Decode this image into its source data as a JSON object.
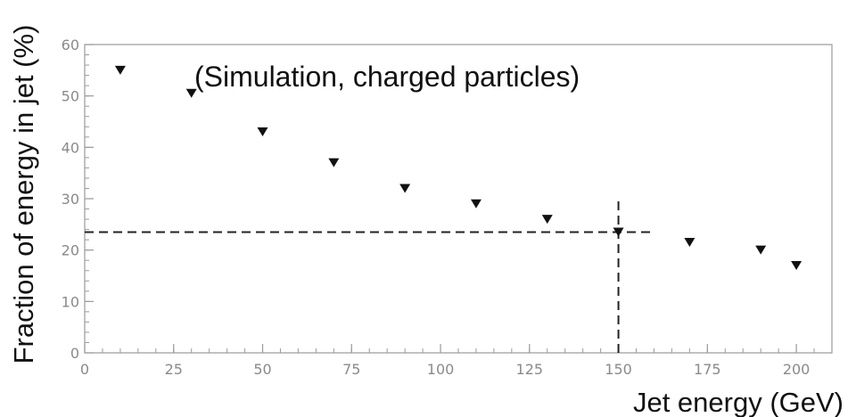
{
  "chart_data": {
    "type": "scatter",
    "title": "",
    "annotation": "(Simulation, charged particles)",
    "xlabel": "Jet energy (GeV)",
    "ylabel": "Fraction of energy in jet (%)",
    "xlim": [
      0,
      210
    ],
    "ylim": [
      0,
      60
    ],
    "xticks": [
      0,
      25,
      50,
      75,
      100,
      125,
      150,
      175,
      200
    ],
    "yticks": [
      0,
      10,
      20,
      30,
      40,
      50,
      60
    ],
    "xtick_labels": [
      "0",
      "25",
      "50",
      "75",
      "100",
      "125",
      "150",
      "175",
      "200"
    ],
    "ytick_labels": [
      "0",
      "10",
      "20",
      "30",
      "40",
      "50",
      "60"
    ],
    "grid": false,
    "marker": "down-triangle",
    "series": [
      {
        "x": [
          10,
          30,
          50,
          70,
          90,
          110,
          130,
          150,
          170,
          190,
          200
        ],
        "y": [
          55,
          50.5,
          43,
          37,
          32,
          29,
          26,
          23.5,
          21.5,
          20,
          17
        ],
        "color": "#111111"
      }
    ],
    "reference_lines": {
      "horizontal": {
        "y": 23.5,
        "x_from": 0,
        "x_to": 160
      },
      "vertical": {
        "x": 150,
        "y_from": 0,
        "y_to": 30
      }
    }
  }
}
